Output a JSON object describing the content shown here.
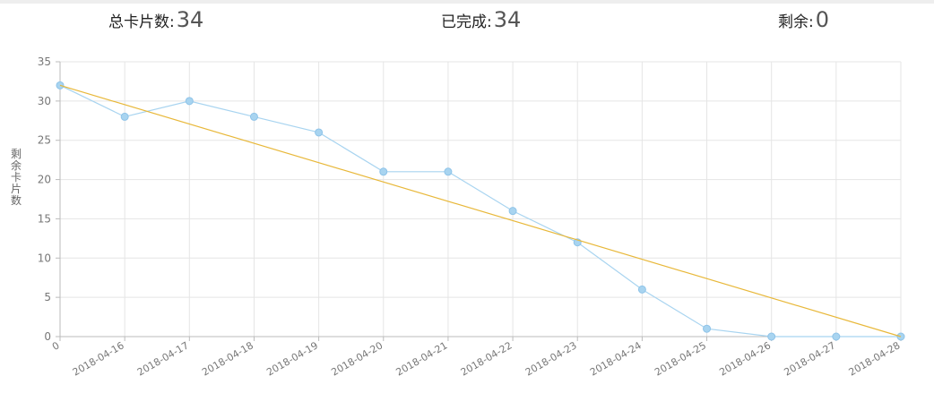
{
  "stats": {
    "total_label": "总卡片数:",
    "total_value": "34",
    "done_label": "已完成:",
    "done_value": "34",
    "left_label": "剩余:",
    "left_value": "0"
  },
  "chart_data": {
    "type": "line",
    "title": "",
    "xlabel": "",
    "ylabel": "剩余卡片数",
    "categories": [
      "0",
      "2018-04-16",
      "2018-04-17",
      "2018-04-18",
      "2018-04-19",
      "2018-04-20",
      "2018-04-21",
      "2018-04-22",
      "2018-04-23",
      "2018-04-24",
      "2018-04-25",
      "2018-04-26",
      "2018-04-27",
      "2018-04-28"
    ],
    "ylim": [
      0,
      35
    ],
    "yticks": [
      0,
      5,
      10,
      15,
      20,
      25,
      30,
      35
    ],
    "grid": true,
    "series": [
      {
        "color": "#a8d4f0",
        "markers": true,
        "values": [
          32,
          28,
          30,
          28,
          26,
          21,
          21,
          16,
          12,
          6,
          1,
          0,
          0,
          0
        ]
      },
      {
        "color": "#e8b83a",
        "markers": false,
        "values": [
          32,
          null,
          null,
          null,
          null,
          null,
          null,
          null,
          null,
          null,
          null,
          null,
          null,
          0
        ]
      }
    ]
  }
}
